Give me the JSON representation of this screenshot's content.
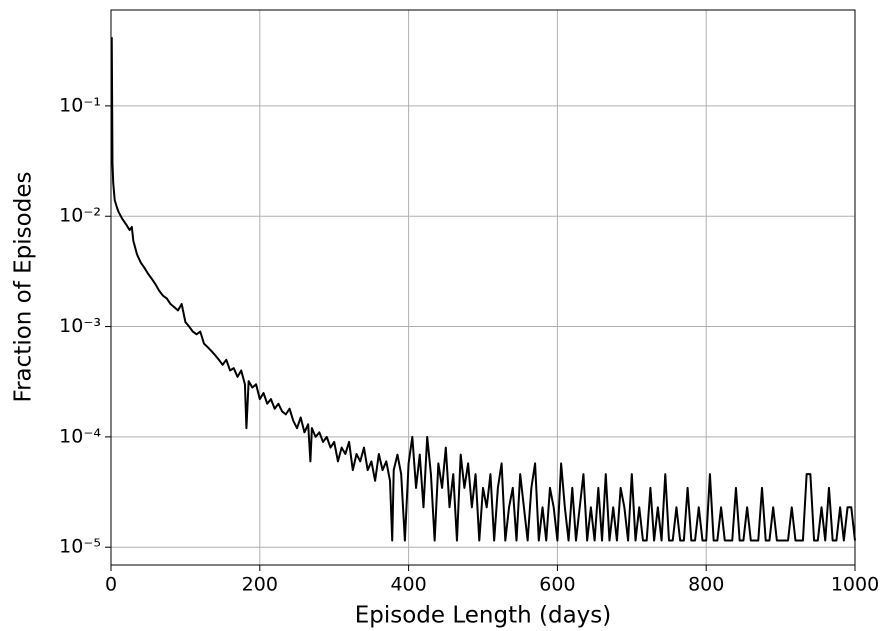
{
  "chart_data": {
    "type": "line",
    "xlabel": "Episode Length (days)",
    "ylabel": "Fraction of Episodes",
    "log_y": true,
    "grid": true,
    "color": "#000000",
    "xlim": [
      0,
      1000
    ],
    "xticks": [
      0,
      200,
      400,
      600,
      800,
      1000
    ],
    "ylim": [
      6.9e-06,
      0.74
    ],
    "yticks": [
      {
        "value": 1e-05,
        "label": "10⁻⁵"
      },
      {
        "value": 0.0001,
        "label": "10⁻⁴"
      },
      {
        "value": 0.001,
        "label": "10⁻³"
      },
      {
        "value": 0.01,
        "label": "10⁻²"
      },
      {
        "value": 0.1,
        "label": "10⁻¹"
      }
    ],
    "x": [
      1,
      2,
      3,
      5,
      8,
      10,
      15,
      20,
      25,
      28,
      30,
      35,
      40,
      45,
      50,
      55,
      60,
      65,
      70,
      75,
      80,
      85,
      90,
      95,
      100,
      105,
      110,
      115,
      120,
      125,
      130,
      135,
      140,
      145,
      150,
      155,
      160,
      165,
      170,
      175,
      180,
      182,
      185,
      190,
      195,
      200,
      205,
      210,
      215,
      220,
      225,
      230,
      235,
      240,
      245,
      250,
      255,
      260,
      265,
      268,
      270,
      275,
      280,
      285,
      290,
      295,
      300,
      305,
      310,
      315,
      320,
      325,
      330,
      335,
      340,
      345,
      350,
      355,
      360,
      365,
      370,
      375,
      378,
      380,
      385,
      390,
      395,
      400,
      405,
      410,
      415,
      420,
      425,
      430,
      435,
      440,
      445,
      450,
      455,
      460,
      465,
      470,
      475,
      480,
      485,
      490,
      495,
      500,
      505,
      510,
      515,
      520,
      525,
      530,
      535,
      540,
      545,
      550,
      555,
      560,
      565,
      570,
      575,
      580,
      585,
      590,
      595,
      600,
      605,
      610,
      615,
      620,
      625,
      630,
      635,
      640,
      645,
      650,
      655,
      660,
      665,
      670,
      675,
      680,
      685,
      690,
      695,
      700,
      705,
      710,
      715,
      720,
      725,
      730,
      735,
      740,
      745,
      750,
      755,
      760,
      765,
      770,
      775,
      780,
      785,
      790,
      795,
      800,
      805,
      810,
      815,
      820,
      825,
      830,
      835,
      840,
      845,
      850,
      855,
      860,
      865,
      870,
      875,
      880,
      885,
      890,
      895,
      900,
      905,
      910,
      915,
      920,
      925,
      930,
      935,
      940,
      945,
      950,
      955,
      960,
      965,
      970,
      975,
      980,
      985,
      990,
      995,
      1000
    ],
    "values": [
      0.42,
      0.03,
      0.02,
      0.014,
      0.012,
      0.011,
      0.0095,
      0.0085,
      0.0075,
      0.008,
      0.006,
      0.0045,
      0.0038,
      0.0034,
      0.003,
      0.0027,
      0.0024,
      0.0021,
      0.0019,
      0.0018,
      0.0016,
      0.0015,
      0.0014,
      0.0016,
      0.0011,
      0.001,
      0.0009,
      0.00085,
      0.0009,
      0.0007,
      0.00065,
      0.0006,
      0.00055,
      0.0005,
      0.00045,
      0.0005,
      0.0004,
      0.00042,
      0.00035,
      0.0004,
      0.0003,
      0.00012,
      0.00032,
      0.00028,
      0.0003,
      0.00022,
      0.00025,
      0.0002,
      0.00022,
      0.00018,
      0.0002,
      0.00017,
      0.00016,
      0.00018,
      0.00014,
      0.00012,
      0.00015,
      0.00011,
      0.00013,
      6e-05,
      0.00012,
      0.0001,
      0.00011,
      9e-05,
      0.0001,
      8e-05,
      9e-05,
      6e-05,
      8e-05,
      7e-05,
      9e-05,
      5e-05,
      7e-05,
      6e-05,
      8e-05,
      5e-05,
      6e-05,
      4e-05,
      7e-05,
      5e-05,
      6e-05,
      4e-05,
      1.15e-05,
      5e-05,
      6.9e-05,
      4.6e-05,
      1.15e-05,
      5.75e-05,
      0.0001,
      3.45e-05,
      6.9e-05,
      2.3e-05,
      0.0001,
      4.6e-05,
      1.15e-05,
      5.75e-05,
      3.45e-05,
      8e-05,
      2.3e-05,
      4.6e-05,
      1.15e-05,
      6.9e-05,
      3.45e-05,
      5.75e-05,
      2.3e-05,
      4.6e-05,
      1.15e-05,
      3.45e-05,
      2.3e-05,
      4.6e-05,
      1.15e-05,
      3.45e-05,
      5.75e-05,
      1.15e-05,
      2.3e-05,
      3.45e-05,
      1.15e-05,
      4.6e-05,
      2.3e-05,
      1.15e-05,
      3.45e-05,
      5.75e-05,
      1.15e-05,
      2.3e-05,
      1.15e-05,
      3.45e-05,
      2.3e-05,
      1.15e-05,
      5.75e-05,
      2.3e-05,
      1.15e-05,
      3.45e-05,
      1.15e-05,
      2.3e-05,
      4.6e-05,
      1.15e-05,
      2.3e-05,
      1.15e-05,
      3.45e-05,
      1.15e-05,
      4.6e-05,
      1.15e-05,
      2.3e-05,
      1.15e-05,
      3.45e-05,
      2.3e-05,
      1.15e-05,
      4.6e-05,
      1.15e-05,
      2.3e-05,
      1.15e-05,
      1.15e-05,
      3.45e-05,
      1.15e-05,
      2.3e-05,
      1.15e-05,
      4.6e-05,
      1.15e-05,
      1.15e-05,
      2.3e-05,
      1.15e-05,
      1.15e-05,
      3.45e-05,
      1.15e-05,
      1.15e-05,
      2.3e-05,
      1.15e-05,
      1.15e-05,
      4.6e-05,
      1.15e-05,
      1.15e-05,
      2.3e-05,
      1.15e-05,
      1.15e-05,
      1.15e-05,
      3.45e-05,
      1.15e-05,
      1.15e-05,
      2.3e-05,
      1.15e-05,
      1.15e-05,
      1.15e-05,
      3.45e-05,
      1.15e-05,
      1.15e-05,
      2.3e-05,
      1.15e-05,
      1.15e-05,
      1.15e-05,
      1.15e-05,
      2.3e-05,
      1.15e-05,
      1.15e-05,
      1.15e-05,
      4.6e-05,
      4.6e-05,
      1.15e-05,
      1.15e-05,
      2.3e-05,
      1.15e-05,
      3.45e-05,
      1.15e-05,
      1.15e-05,
      2.3e-05,
      1.15e-05,
      2.3e-05,
      2.3e-05,
      1.15e-05
    ]
  }
}
